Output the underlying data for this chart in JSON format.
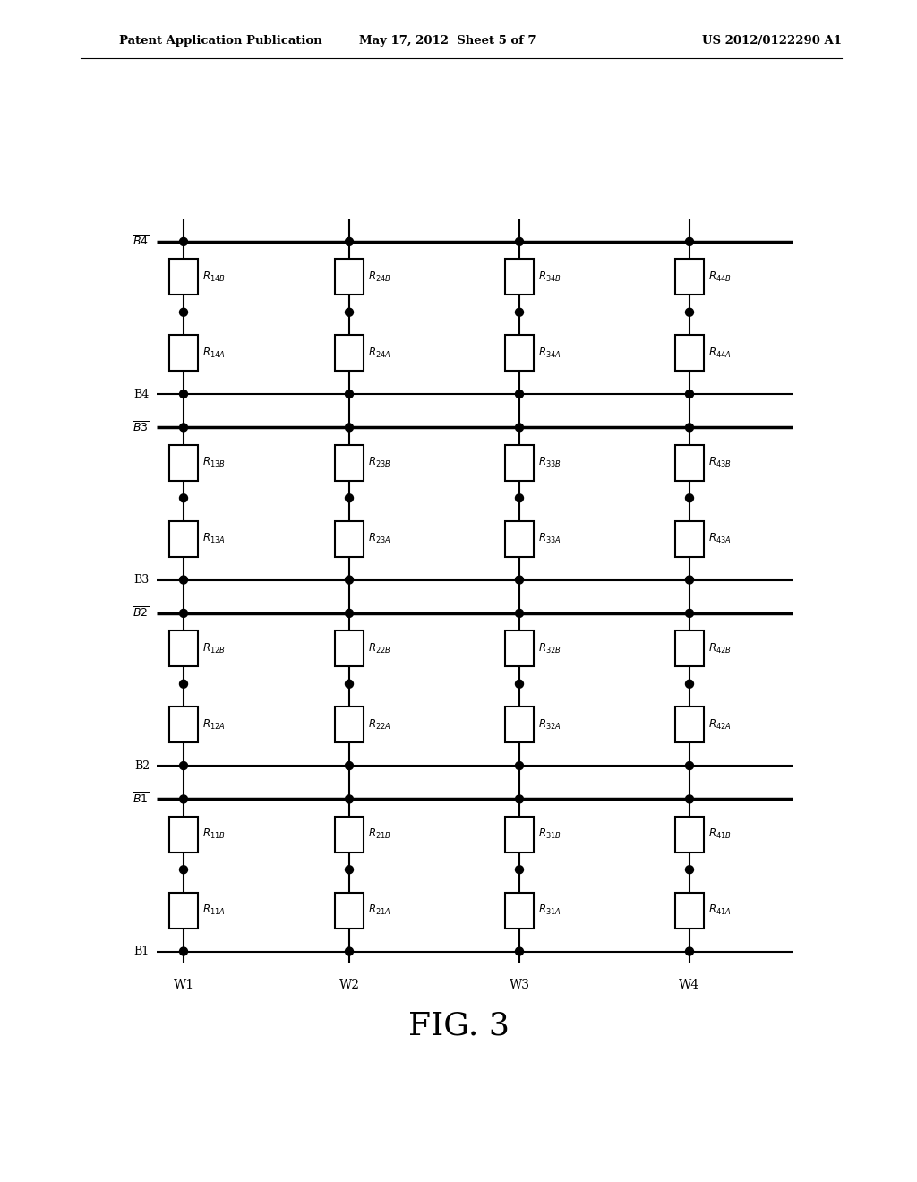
{
  "title": "FIG. 3",
  "header_left": "Patent Application Publication",
  "header_center": "May 17, 2012  Sheet 5 of 7",
  "header_right": "US 2012/0122290 A1",
  "fig_width": 10.24,
  "fig_height": 13.2,
  "bg_color": "#ffffff",
  "line_color": "#000000",
  "wire_labels": [
    "W1",
    "W2",
    "W3",
    "W4"
  ],
  "cells": [
    {
      "col": 0,
      "row": 0,
      "labelA": "11A",
      "labelB": "11B"
    },
    {
      "col": 1,
      "row": 0,
      "labelA": "21A",
      "labelB": "21B"
    },
    {
      "col": 2,
      "row": 0,
      "labelA": "31A",
      "labelB": "31B"
    },
    {
      "col": 3,
      "row": 0,
      "labelA": "41A",
      "labelB": "41B"
    },
    {
      "col": 0,
      "row": 1,
      "labelA": "12A",
      "labelB": "12B"
    },
    {
      "col": 1,
      "row": 1,
      "labelA": "22A",
      "labelB": "22B"
    },
    {
      "col": 2,
      "row": 1,
      "labelA": "32A",
      "labelB": "32B"
    },
    {
      "col": 3,
      "row": 1,
      "labelA": "42A",
      "labelB": "42B"
    },
    {
      "col": 0,
      "row": 2,
      "labelA": "13A",
      "labelB": "13B"
    },
    {
      "col": 1,
      "row": 2,
      "labelA": "23A",
      "labelB": "23B"
    },
    {
      "col": 2,
      "row": 2,
      "labelA": "33A",
      "labelB": "33B"
    },
    {
      "col": 3,
      "row": 2,
      "labelA": "43A",
      "labelB": "43B"
    },
    {
      "col": 0,
      "row": 3,
      "labelA": "14A",
      "labelB": "14B"
    },
    {
      "col": 1,
      "row": 3,
      "labelA": "24A",
      "labelB": "24B"
    },
    {
      "col": 2,
      "row": 3,
      "labelA": "34A",
      "labelB": "34B"
    },
    {
      "col": 3,
      "row": 3,
      "labelA": "44A",
      "labelB": "44B"
    }
  ]
}
